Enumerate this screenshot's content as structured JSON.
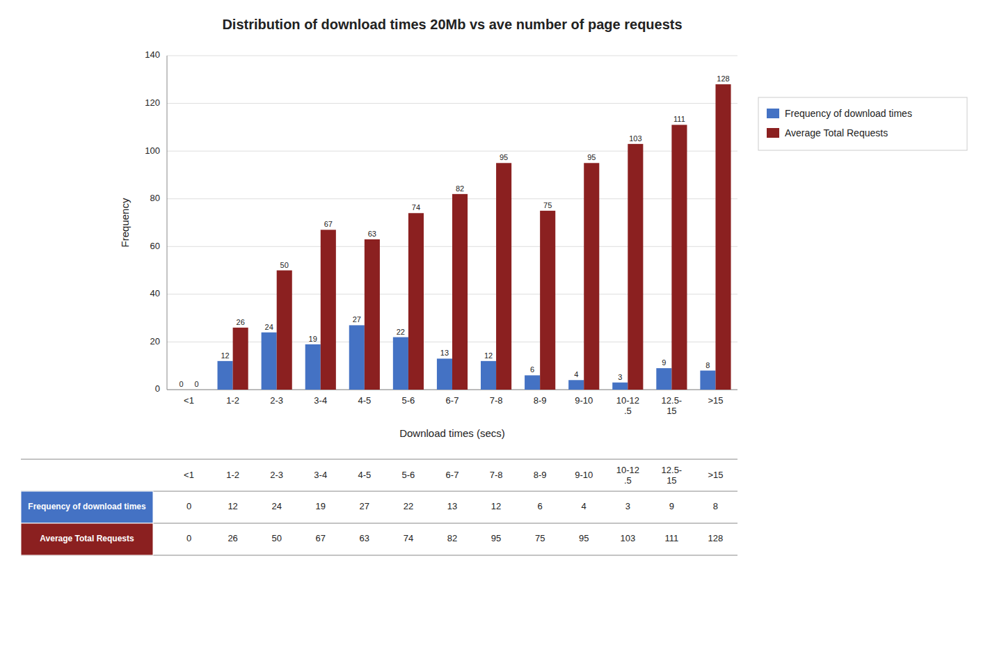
{
  "chart_data": {
    "type": "bar",
    "title": "Distribution of download times 20Mb vs ave number of page requests",
    "xlabel": "Download times (secs)",
    "ylabel": "Frequency",
    "categories": [
      "<1",
      "1-2",
      "2-3",
      "3-4",
      "4-5",
      "5-6",
      "6-7",
      "7-8",
      "8-9",
      "9-10",
      "10-12\n.5",
      "12.5-\n15",
      ">15"
    ],
    "series": [
      {
        "name": "Frequency of download times",
        "color": "#4472C4",
        "values": [
          0,
          12,
          24,
          19,
          27,
          22,
          13,
          12,
          6,
          4,
          3,
          9,
          8
        ]
      },
      {
        "name": "Average Total Requests",
        "color": "#8B2020",
        "values": [
          0,
          26,
          50,
          67,
          63,
          74,
          82,
          95,
          75,
          95,
          103,
          111,
          128
        ]
      }
    ],
    "ylim": [
      0,
      140
    ],
    "yticks": [
      0,
      20,
      40,
      60,
      80,
      100,
      120,
      140
    ],
    "grid": true,
    "legend": "right",
    "data_labels": true
  }
}
